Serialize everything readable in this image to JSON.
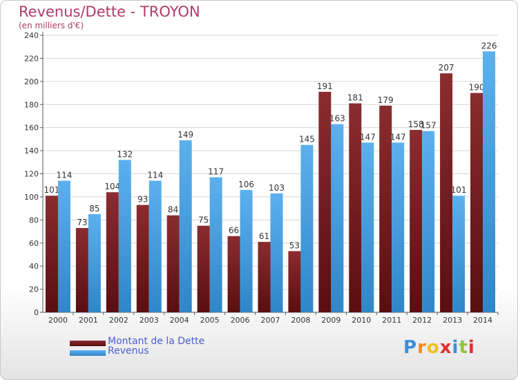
{
  "header": {
    "title": "Revenus/Dette - TROYON",
    "subtitle": "(en milliers d'€)"
  },
  "chart_data": {
    "type": "bar",
    "categories": [
      "2000",
      "2001",
      "2002",
      "2003",
      "2004",
      "2005",
      "2006",
      "2007",
      "2008",
      "2009",
      "2010",
      "2011",
      "2012",
      "2013",
      "2014"
    ],
    "series": [
      {
        "name": "Montant de la Dette",
        "values": [
          101,
          73,
          104,
          93,
          84,
          75,
          66,
          61,
          53,
          191,
          181,
          179,
          158,
          207,
          190
        ],
        "color": "#7a1f22"
      },
      {
        "name": "Revenus",
        "values": [
          114,
          85,
          132,
          114,
          149,
          117,
          106,
          103,
          145,
          163,
          147,
          147,
          157,
          101,
          226
        ],
        "color": "#4aa3e6"
      }
    ],
    "yticks": [
      0,
      20,
      40,
      60,
      80,
      100,
      120,
      140,
      160,
      180,
      200,
      220,
      240
    ],
    "ylim": [
      0,
      240
    ],
    "grid": true,
    "legend_position": "bottom-left"
  },
  "logo": {
    "letters": [
      "P",
      "r",
      "o",
      "x",
      "i",
      "t",
      "i"
    ],
    "colors": [
      "#3b8fd8",
      "#f08a1c",
      "#f0c020",
      "#e03030",
      "#3b8fd8",
      "#8cc63f",
      "#e03030"
    ]
  }
}
